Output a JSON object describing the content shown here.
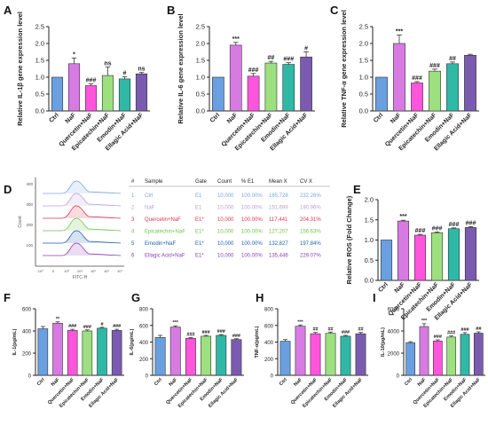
{
  "colors": {
    "Ctrl": "#6a9fe0",
    "NaF": "#d77be3",
    "Quercetin+NaF": "#ff55dd",
    "Epicatechin+NaF": "#9de07f",
    "Emodin+NaF": "#2fb8a6",
    "Ellagic Acid+NaF": "#7b5bb0",
    "table_text": [
      "#7aa6e0",
      "#b9a0d0",
      "#e0334a",
      "#6fc44a",
      "#1f5fb0",
      "#8a3fb0"
    ]
  },
  "chart_data": [
    {
      "panel": "A",
      "type": "bar",
      "ylabel": "Relative IL-1β gene expression level",
      "categories": [
        "Ctrl",
        "NaF",
        "Quercetin+NaF",
        "Epicatechin+NaF",
        "Emodin+NaF",
        "Ellagic Acid+NaF"
      ],
      "values": [
        1.0,
        1.4,
        0.75,
        1.05,
        0.95,
        1.1
      ],
      "errors": [
        0.0,
        0.17,
        0.05,
        0.25,
        0.06,
        0.04
      ],
      "marks": [
        "",
        "*",
        "###",
        "ns",
        "#",
        "ns"
      ],
      "ylim": [
        0,
        2.5
      ],
      "yticks": [
        "0.0",
        "0.5",
        "1.0",
        "1.5",
        "2.0",
        "2.5"
      ],
      "ytick_vals": [
        0,
        0.5,
        1,
        1.5,
        2,
        2.5
      ]
    },
    {
      "panel": "B",
      "type": "bar",
      "ylabel": "Relative IL-6 gene expression level",
      "categories": [
        "Ctrl",
        "NaF",
        "Quercetin+NaF",
        "Epicatechin+NaF",
        "Emodin+NaF",
        "Ellagic Acid+NaF"
      ],
      "values": [
        1.0,
        1.95,
        1.03,
        1.42,
        1.38,
        1.6
      ],
      "errors": [
        0.0,
        0.08,
        0.08,
        0.05,
        0.05,
        0.15
      ],
      "marks": [
        "",
        "***",
        "###",
        "##",
        "###",
        "#"
      ],
      "ylim": [
        0,
        2.5
      ],
      "yticks": [
        "0.0",
        "0.5",
        "1.0",
        "1.5",
        "2.0",
        "2.5"
      ],
      "ytick_vals": [
        0,
        0.5,
        1,
        1.5,
        2,
        2.5
      ]
    },
    {
      "panel": "C",
      "type": "bar",
      "ylabel": "Relative TNF-α gene expression level",
      "categories": [
        "Ctrl",
        "NaF",
        "Quercetin+NaF",
        "Epicatechin+NaF",
        "Emodin+NaF",
        "Ellagic Acid+NaF"
      ],
      "values": [
        1.0,
        2.0,
        0.83,
        1.18,
        1.4,
        1.65
      ],
      "errors": [
        0.0,
        0.25,
        0.04,
        0.06,
        0.05,
        0.03
      ],
      "marks": [
        "",
        "***",
        "###",
        "###",
        "##",
        ""
      ],
      "ylim": [
        0,
        2.5
      ],
      "yticks": [
        "0.0",
        "0.5",
        "1.0",
        "1.5",
        "2.0",
        "2.5"
      ],
      "ytick_vals": [
        0,
        0.5,
        1,
        1.5,
        2,
        2.5
      ]
    },
    {
      "panel": "D",
      "type": "table",
      "axis_ticks_y": [
        "400",
        "300",
        "200",
        "100"
      ],
      "ylabel": "Count",
      "xlabel": "FITC-H",
      "x_ticks": [
        "-10³",
        "0",
        "10³",
        "10⁴",
        "10⁵",
        "10⁶",
        "10⁷"
      ],
      "columns": [
        "#",
        "Sample",
        "Gate",
        "Count",
        "% E1",
        "Mean X",
        "CV X"
      ],
      "rows": [
        [
          "1",
          "Ctrl",
          "E1",
          "10,000",
          "100.00%",
          "165,728",
          "232.26%"
        ],
        [
          "2",
          "NaF",
          "E1",
          "10,000",
          "100.00%",
          "151,699",
          "190.96%"
        ],
        [
          "3",
          "Quercetin+NaF",
          "E1*",
          "10,000",
          "100.00%",
          "117,441",
          "204.31%"
        ],
        [
          "4",
          "Epicatechin+NaF",
          "E1*",
          "10,000",
          "100.00%",
          "127,207",
          "156.63%"
        ],
        [
          "5",
          "Emodin+NaF",
          "E1*",
          "10,000",
          "100.00%",
          "132,827",
          "197.84%"
        ],
        [
          "6",
          "Ellagic Acid+NaF",
          "E1*",
          "10,000",
          "100.00%",
          "135,446",
          "229.07%"
        ]
      ]
    },
    {
      "panel": "E",
      "type": "bar",
      "ylabel": "Relative ROS (Fold Change)",
      "categories": [
        "Ctrl",
        "NaF",
        "Quercetin+NaF",
        "Epicatechin+NaF",
        "Emodin+NaF",
        "Ellagic Acid+NaF"
      ],
      "values": [
        1.0,
        1.47,
        1.12,
        1.18,
        1.28,
        1.31
      ],
      "errors": [
        0.0,
        0.02,
        0.02,
        0.02,
        0.02,
        0.02
      ],
      "marks": [
        "",
        "***",
        "###",
        "###",
        "###",
        "###"
      ],
      "ylim": [
        0,
        2.0
      ],
      "yticks": [
        "0.0",
        "0.5",
        "1.0",
        "1.5",
        "2.0"
      ],
      "ytick_vals": [
        0,
        0.5,
        1,
        1.5,
        2
      ]
    },
    {
      "panel": "F",
      "type": "bar",
      "ylabel": "IL-1(pg/mL)",
      "categories": [
        "Ctrl",
        "NaF",
        "Quercetin+NaF",
        "Epicatechin+NaF",
        "Emodin+NaF",
        "Ellagic Acid+NaF"
      ],
      "values": [
        420,
        470,
        405,
        400,
        425,
        405
      ],
      "errors": [
        20,
        12,
        10,
        10,
        8,
        10
      ],
      "marks": [
        "",
        "**",
        "###",
        "###",
        "#",
        "###"
      ],
      "ylim": [
        0,
        600
      ],
      "yticks": [
        "0",
        "200",
        "400",
        "600"
      ],
      "ytick_vals": [
        0,
        200,
        400,
        600
      ]
    },
    {
      "panel": "G",
      "type": "bar",
      "ylabel": "IL-6(pg/mL)",
      "categories": [
        "Ctrl",
        "NaF",
        "Quercetin+NaF",
        "Epicatechin+NaF",
        "Emodin+NaF",
        "Ellagic Acid+NaF"
      ],
      "values": [
        455,
        580,
        445,
        470,
        480,
        430
      ],
      "errors": [
        25,
        15,
        10,
        10,
        10,
        10
      ],
      "marks": [
        "",
        "***",
        "###",
        "###",
        "###",
        "###"
      ],
      "ylim": [
        0,
        800
      ],
      "yticks": [
        "0",
        "200",
        "400",
        "600",
        "800"
      ],
      "ytick_vals": [
        0,
        200,
        400,
        600,
        800
      ]
    },
    {
      "panel": "H",
      "type": "bar",
      "ylabel": "TNF-α(pg/mL)",
      "categories": [
        "Ctrl",
        "NaF",
        "Quercetin+NaF",
        "Epicatechin+NaF",
        "Emodin+NaF",
        "Ellagic Acid+NaF"
      ],
      "values": [
        410,
        590,
        500,
        505,
        470,
        500
      ],
      "errors": [
        20,
        15,
        15,
        15,
        10,
        15
      ],
      "marks": [
        "",
        "***",
        "##",
        "##",
        "###",
        "##"
      ],
      "ylim": [
        0,
        800
      ],
      "yticks": [
        "0",
        "200",
        "400",
        "600",
        "800"
      ],
      "ytick_vals": [
        0,
        200,
        400,
        600,
        800
      ]
    },
    {
      "panel": "I",
      "type": "bar",
      "ylabel": "IL-10(pg/mL)",
      "categories": [
        "Ctrl",
        "NaF",
        "Quercetin+NaF",
        "Epicatechin+NaF",
        "Emodin+NaF",
        "Ellagic Acid+NaF"
      ],
      "values": [
        2950,
        4400,
        3100,
        3450,
        3700,
        3800
      ],
      "errors": [
        80,
        250,
        100,
        100,
        150,
        120
      ],
      "marks": [
        "",
        "***",
        "###",
        "###",
        "###",
        "##"
      ],
      "ylim": [
        0,
        6000
      ],
      "yticks": [
        "0",
        "2000",
        "4000",
        "6000"
      ],
      "ytick_vals": [
        0,
        2000,
        4000,
        6000
      ]
    }
  ]
}
